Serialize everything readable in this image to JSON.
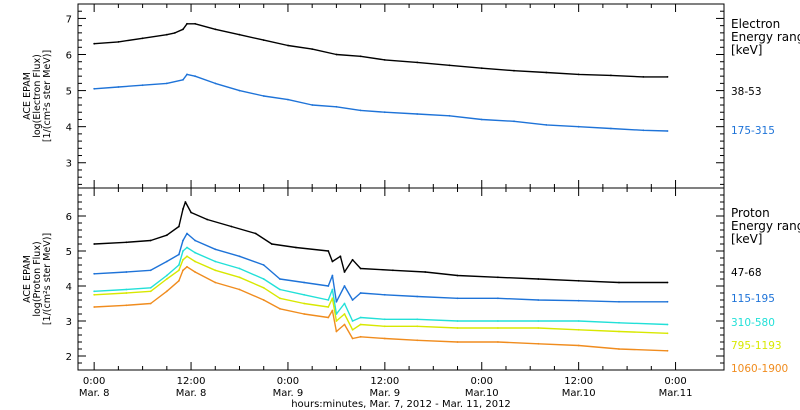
{
  "chart_data": [
    {
      "type": "line",
      "panel": "electron",
      "ylabel_lines": [
        "ACE EPAM",
        "log(Electron Flux)",
        "[1/(cm²s ster MeV)]"
      ],
      "ylim": [
        2.3,
        7.4
      ],
      "yticks": [
        3,
        4,
        5,
        6,
        7
      ],
      "legend_title_lines": [
        "Electron",
        "Energy range",
        "[keV]"
      ],
      "grid": false,
      "series": [
        {
          "name": "38-53",
          "color": "#000000",
          "points": [
            [
              0,
              6.3
            ],
            [
              3,
              6.35
            ],
            [
              6,
              6.45
            ],
            [
              9,
              6.55
            ],
            [
              10,
              6.6
            ],
            [
              11,
              6.7
            ],
            [
              11.5,
              6.85
            ],
            [
              12.5,
              6.85
            ],
            [
              15,
              6.7
            ],
            [
              18,
              6.55
            ],
            [
              21,
              6.4
            ],
            [
              24,
              6.25
            ],
            [
              27,
              6.15
            ],
            [
              30,
              6.0
            ],
            [
              33,
              5.95
            ],
            [
              36,
              5.85
            ],
            [
              40,
              5.78
            ],
            [
              44,
              5.7
            ],
            [
              48,
              5.62
            ],
            [
              52,
              5.55
            ],
            [
              56,
              5.5
            ],
            [
              60,
              5.45
            ],
            [
              64,
              5.42
            ],
            [
              68,
              5.38
            ],
            [
              71,
              5.38
            ]
          ]
        },
        {
          "name": "175-315",
          "color": "#1e73d8",
          "points": [
            [
              0,
              5.05
            ],
            [
              3,
              5.1
            ],
            [
              6,
              5.15
            ],
            [
              9,
              5.2
            ],
            [
              11,
              5.3
            ],
            [
              11.5,
              5.45
            ],
            [
              12.5,
              5.4
            ],
            [
              15,
              5.2
            ],
            [
              18,
              5.0
            ],
            [
              21,
              4.85
            ],
            [
              24,
              4.75
            ],
            [
              27,
              4.6
            ],
            [
              30,
              4.55
            ],
            [
              33,
              4.45
            ],
            [
              36,
              4.4
            ],
            [
              40,
              4.35
            ],
            [
              44,
              4.3
            ],
            [
              48,
              4.2
            ],
            [
              52,
              4.15
            ],
            [
              56,
              4.05
            ],
            [
              60,
              4.0
            ],
            [
              64,
              3.95
            ],
            [
              68,
              3.9
            ],
            [
              71,
              3.88
            ]
          ]
        }
      ]
    },
    {
      "type": "line",
      "panel": "proton",
      "ylabel_lines": [
        "ACE EPAM",
        "log(Proton Flux)",
        "[1/(cm²s ster MeV)]"
      ],
      "ylim": [
        1.6,
        6.8
      ],
      "yticks": [
        2,
        3,
        4,
        5,
        6
      ],
      "legend_title_lines": [
        "Proton",
        "Energy range",
        "[keV]"
      ],
      "grid": false,
      "series": [
        {
          "name": "47-68",
          "color": "#000000",
          "points": [
            [
              0,
              5.2
            ],
            [
              4,
              5.25
            ],
            [
              7,
              5.3
            ],
            [
              9,
              5.45
            ],
            [
              10.5,
              5.7
            ],
            [
              11,
              6.2
            ],
            [
              11.3,
              6.4
            ],
            [
              12,
              6.1
            ],
            [
              14,
              5.9
            ],
            [
              17,
              5.7
            ],
            [
              20,
              5.5
            ],
            [
              22,
              5.2
            ],
            [
              25,
              5.1
            ],
            [
              29,
              5.0
            ],
            [
              29.5,
              4.7
            ],
            [
              30.5,
              4.85
            ],
            [
              31,
              4.4
            ],
            [
              32,
              4.75
            ],
            [
              33,
              4.5
            ],
            [
              37,
              4.45
            ],
            [
              41,
              4.4
            ],
            [
              45,
              4.3
            ],
            [
              50,
              4.25
            ],
            [
              55,
              4.2
            ],
            [
              60,
              4.15
            ],
            [
              65,
              4.1
            ],
            [
              71,
              4.1
            ]
          ]
        },
        {
          "name": "115-195",
          "color": "#1e73d8",
          "points": [
            [
              0,
              4.35
            ],
            [
              4,
              4.4
            ],
            [
              7,
              4.45
            ],
            [
              9,
              4.7
            ],
            [
              10.5,
              4.9
            ],
            [
              11,
              5.3
            ],
            [
              11.5,
              5.5
            ],
            [
              12.5,
              5.3
            ],
            [
              15,
              5.05
            ],
            [
              18,
              4.85
            ],
            [
              21,
              4.6
            ],
            [
              23,
              4.2
            ],
            [
              26,
              4.1
            ],
            [
              29,
              4.0
            ],
            [
              29.5,
              4.3
            ],
            [
              30,
              3.55
            ],
            [
              31,
              4.0
            ],
            [
              32,
              3.6
            ],
            [
              33,
              3.8
            ],
            [
              36,
              3.75
            ],
            [
              40,
              3.7
            ],
            [
              45,
              3.65
            ],
            [
              50,
              3.65
            ],
            [
              55,
              3.6
            ],
            [
              60,
              3.58
            ],
            [
              65,
              3.55
            ],
            [
              71,
              3.55
            ]
          ]
        },
        {
          "name": "310-580",
          "color": "#22e0d8",
          "points": [
            [
              0,
              3.85
            ],
            [
              4,
              3.9
            ],
            [
              7,
              3.95
            ],
            [
              9,
              4.3
            ],
            [
              10.5,
              4.6
            ],
            [
              11,
              5.0
            ],
            [
              11.5,
              5.1
            ],
            [
              12.5,
              4.95
            ],
            [
              15,
              4.7
            ],
            [
              18,
              4.5
            ],
            [
              21,
              4.2
            ],
            [
              23,
              3.9
            ],
            [
              26,
              3.75
            ],
            [
              29,
              3.6
            ],
            [
              29.5,
              3.9
            ],
            [
              30,
              3.2
            ],
            [
              31,
              3.5
            ],
            [
              32,
              3.0
            ],
            [
              33,
              3.1
            ],
            [
              36,
              3.05
            ],
            [
              40,
              3.05
            ],
            [
              45,
              3.0
            ],
            [
              50,
              3.0
            ],
            [
              55,
              3.0
            ],
            [
              60,
              3.0
            ],
            [
              65,
              2.95
            ],
            [
              71,
              2.9
            ]
          ]
        },
        {
          "name": "795-1193",
          "color": "#d8e800",
          "points": [
            [
              0,
              3.75
            ],
            [
              4,
              3.8
            ],
            [
              7,
              3.85
            ],
            [
              9,
              4.2
            ],
            [
              10.5,
              4.45
            ],
            [
              11,
              4.75
            ],
            [
              11.5,
              4.85
            ],
            [
              12.5,
              4.7
            ],
            [
              15,
              4.45
            ],
            [
              18,
              4.25
            ],
            [
              21,
              3.95
            ],
            [
              23,
              3.65
            ],
            [
              26,
              3.5
            ],
            [
              29,
              3.4
            ],
            [
              29.5,
              3.65
            ],
            [
              30,
              3.0
            ],
            [
              31,
              3.2
            ],
            [
              32,
              2.75
            ],
            [
              33,
              2.9
            ],
            [
              36,
              2.85
            ],
            [
              40,
              2.85
            ],
            [
              45,
              2.8
            ],
            [
              50,
              2.8
            ],
            [
              55,
              2.8
            ],
            [
              60,
              2.75
            ],
            [
              65,
              2.7
            ],
            [
              71,
              2.65
            ]
          ]
        },
        {
          "name": "1060-1900",
          "color": "#f08c1e",
          "points": [
            [
              0,
              3.4
            ],
            [
              4,
              3.45
            ],
            [
              7,
              3.5
            ],
            [
              9,
              3.85
            ],
            [
              10.5,
              4.15
            ],
            [
              11,
              4.45
            ],
            [
              11.5,
              4.55
            ],
            [
              12.5,
              4.4
            ],
            [
              15,
              4.1
            ],
            [
              18,
              3.9
            ],
            [
              21,
              3.6
            ],
            [
              23,
              3.35
            ],
            [
              26,
              3.2
            ],
            [
              29,
              3.1
            ],
            [
              29.5,
              3.3
            ],
            [
              30,
              2.7
            ],
            [
              31,
              2.9
            ],
            [
              32,
              2.5
            ],
            [
              33,
              2.55
            ],
            [
              36,
              2.5
            ],
            [
              40,
              2.45
            ],
            [
              45,
              2.4
            ],
            [
              50,
              2.4
            ],
            [
              55,
              2.35
            ],
            [
              60,
              2.3
            ],
            [
              65,
              2.2
            ],
            [
              71,
              2.15
            ]
          ]
        }
      ]
    }
  ],
  "x_axis": {
    "xlim": [
      -2,
      78
    ],
    "ticks": [
      {
        "t": 0,
        "line1": "0:00",
        "line2": "Mar. 8"
      },
      {
        "t": 12,
        "line1": "12:00",
        "line2": "Mar. 8"
      },
      {
        "t": 24,
        "line1": "0:00",
        "line2": "Mar. 9"
      },
      {
        "t": 36,
        "line1": "12:00",
        "line2": "Mar. 9"
      },
      {
        "t": 48,
        "line1": "0:00",
        "line2": "Mar.10"
      },
      {
        "t": 60,
        "line1": "12:00",
        "line2": "Mar.10"
      },
      {
        "t": 72,
        "line1": "0:00",
        "line2": "Mar.11"
      }
    ],
    "xlabel": "hours:minutes, Mar.  7, 2012 - Mar. 11, 2012"
  }
}
